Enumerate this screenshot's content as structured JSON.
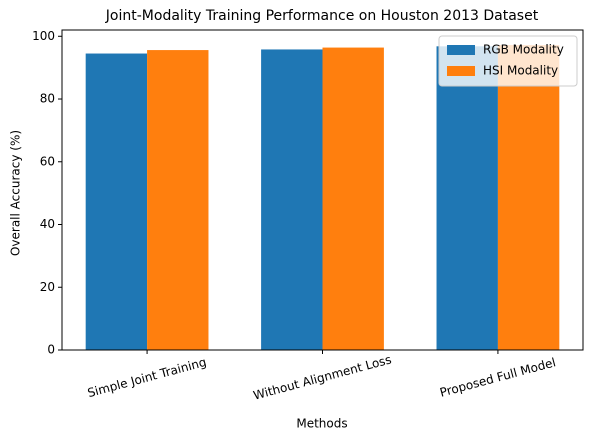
{
  "chart_data": {
    "type": "bar",
    "title": "Joint-Modality Training Performance on Houston 2013 Dataset",
    "x_label": "Methods",
    "y_label": "Overall Accuracy (%)",
    "categories": [
      "Simple Joint Training",
      "Without Alignment Loss",
      "Proposed Full Model"
    ],
    "series": [
      {
        "name": "RGB Modality",
        "color": "#1f77b4",
        "values": [
          94.5,
          95.8,
          96.8
        ]
      },
      {
        "name": "HSI Modality",
        "color": "#ff7f0e",
        "values": [
          95.6,
          96.4,
          97.2
        ]
      }
    ],
    "ylim": [
      0,
      102
    ],
    "yticks": [
      0,
      20,
      40,
      60,
      80,
      100
    ],
    "legend": "upper right"
  }
}
